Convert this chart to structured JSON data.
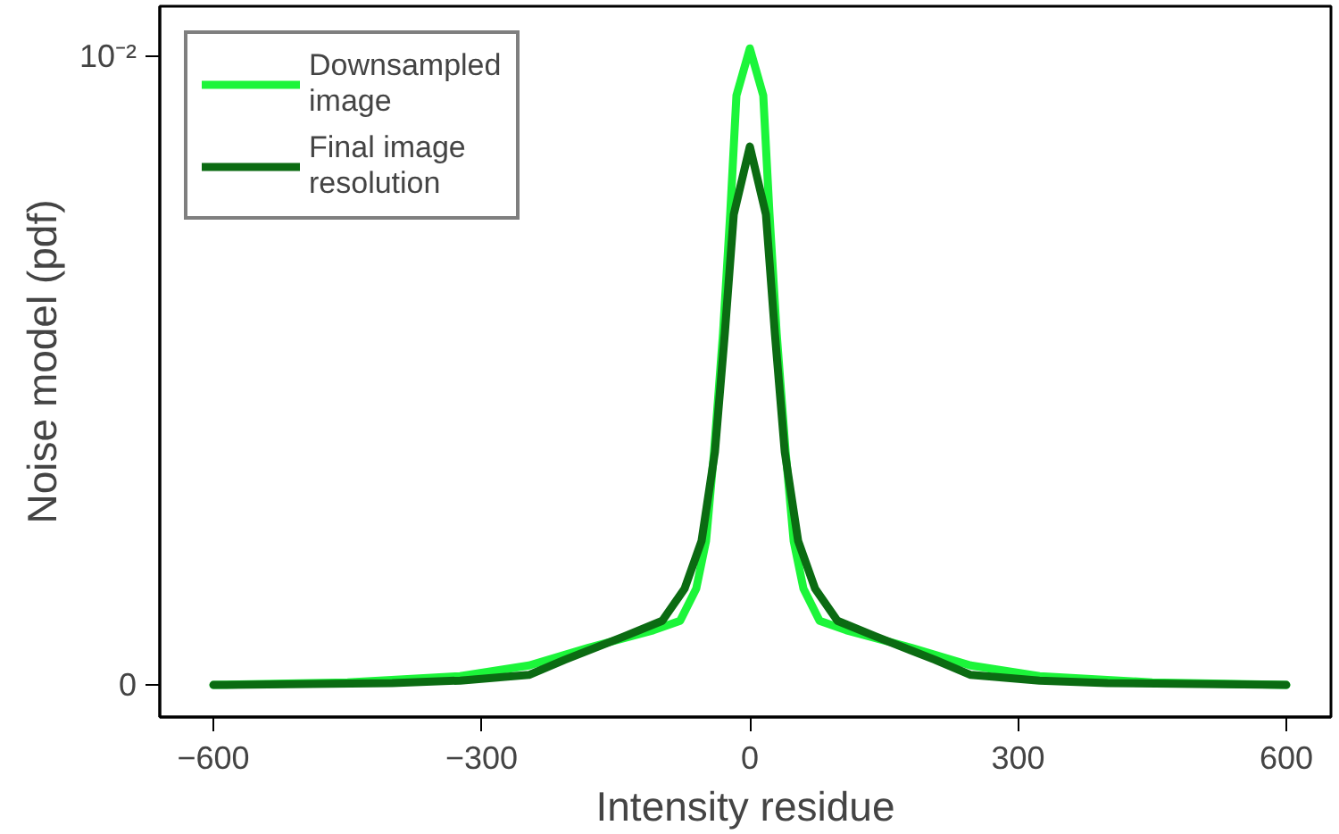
{
  "chart_data": {
    "type": "line",
    "xlabel": "Intensity residue",
    "ylabel": "Noise model (pdf)",
    "xlim": [
      -660,
      650
    ],
    "ylim": [
      -0.00051,
      0.01079
    ],
    "xticks": [
      -600,
      -300,
      0,
      300,
      600
    ],
    "yticks": [
      0,
      {
        "value": 0.01,
        "label": "10⁻²"
      }
    ],
    "grid": false,
    "legend": "top left",
    "line_style": "solid",
    "marker": "none",
    "series": [
      {
        "name": "Downsampled\nimage",
        "color": "#1cf53a",
        "x": [
          -600,
          -450,
          -324,
          -247,
          -181,
          -108,
          -78,
          -60,
          -49,
          -40,
          -30,
          -22,
          -15,
          0,
          15,
          22,
          30,
          40,
          49,
          60,
          78,
          108,
          181,
          247,
          324,
          450,
          600
        ],
        "values": [
          0,
          4e-05,
          0.00014,
          0.00031,
          0.00059,
          0.00087,
          0.00102,
          0.00153,
          0.00229,
          0.00371,
          0.00559,
          0.00748,
          0.00937,
          0.01012,
          0.00937,
          0.00748,
          0.00559,
          0.00371,
          0.00229,
          0.00153,
          0.00102,
          0.00087,
          0.00059,
          0.00031,
          0.00014,
          4e-05,
          0
        ]
      },
      {
        "name": "Final image\nresolution",
        "color": "#0b6b12",
        "x": [
          -600,
          -400,
          -324,
          -247,
          -207,
          -141,
          -98,
          -73,
          -54,
          -39,
          -28,
          -18,
          0,
          18,
          28,
          39,
          54,
          73,
          98,
          141,
          207,
          247,
          324,
          400,
          600
        ],
        "values": [
          0,
          3e-05,
          7e-05,
          0.00016,
          0.0004,
          0.00077,
          0.00102,
          0.00153,
          0.00229,
          0.00371,
          0.00559,
          0.00748,
          0.00856,
          0.00748,
          0.00559,
          0.00371,
          0.00229,
          0.00153,
          0.00102,
          0.00077,
          0.0004,
          0.00016,
          7e-05,
          3e-05,
          0
        ]
      }
    ]
  }
}
